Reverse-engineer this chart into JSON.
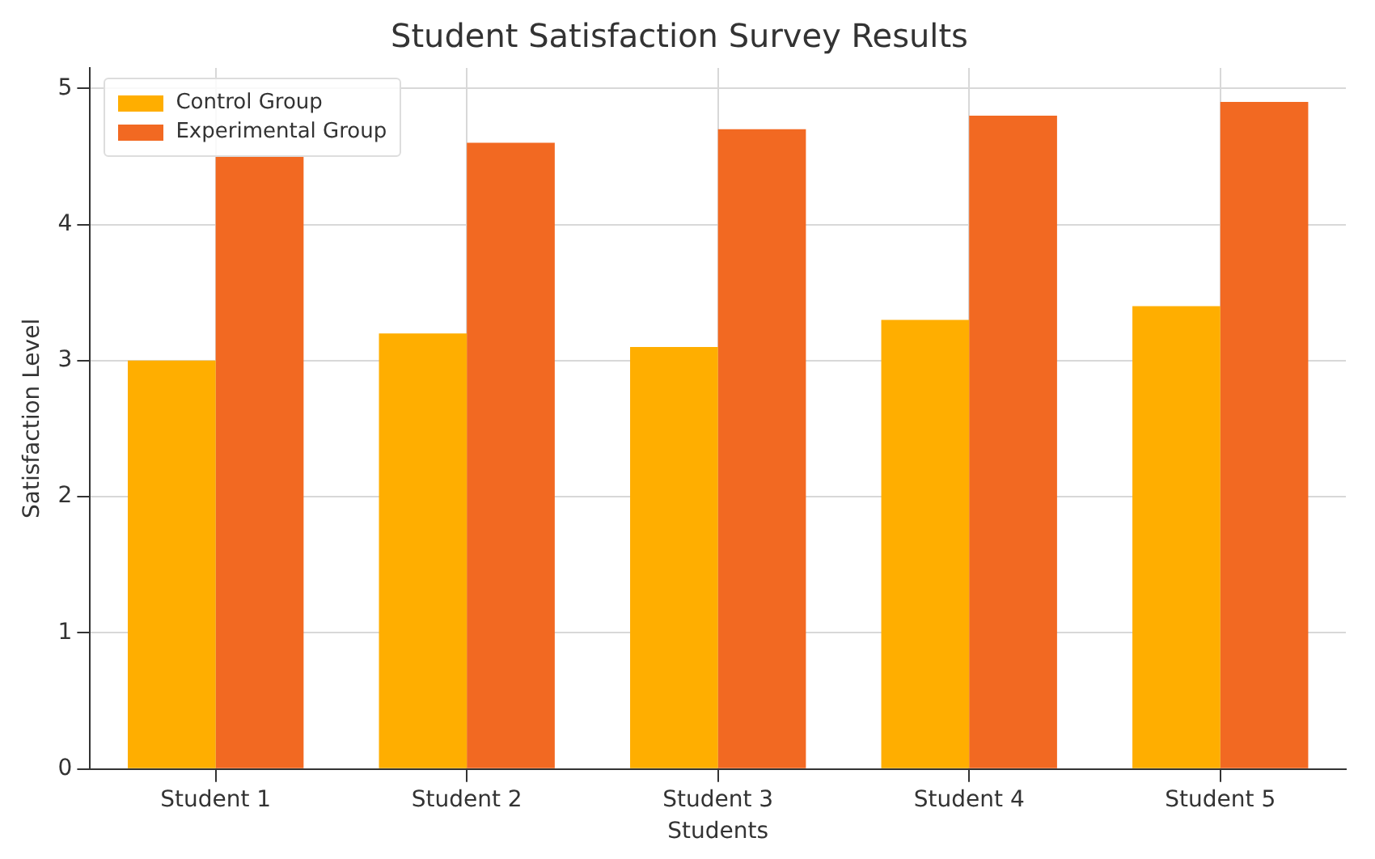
{
  "chart_data": {
    "type": "bar",
    "title": "Student Satisfaction Survey Results",
    "xlabel": "Students",
    "ylabel": "Satisfaction Level",
    "categories": [
      "Student 1",
      "Student 2",
      "Student 3",
      "Student 4",
      "Student 5"
    ],
    "series": [
      {
        "name": "Control Group",
        "color": "#ffae00",
        "values": [
          3.0,
          3.2,
          3.1,
          3.3,
          3.4
        ]
      },
      {
        "name": "Experimental Group",
        "color": "#f26922",
        "values": [
          4.5,
          4.6,
          4.7,
          4.8,
          4.9
        ]
      }
    ],
    "ylim": [
      0,
      5.15
    ],
    "yticks": [
      0,
      1,
      2,
      3,
      4,
      5
    ],
    "grid": true,
    "legend": "top left"
  }
}
